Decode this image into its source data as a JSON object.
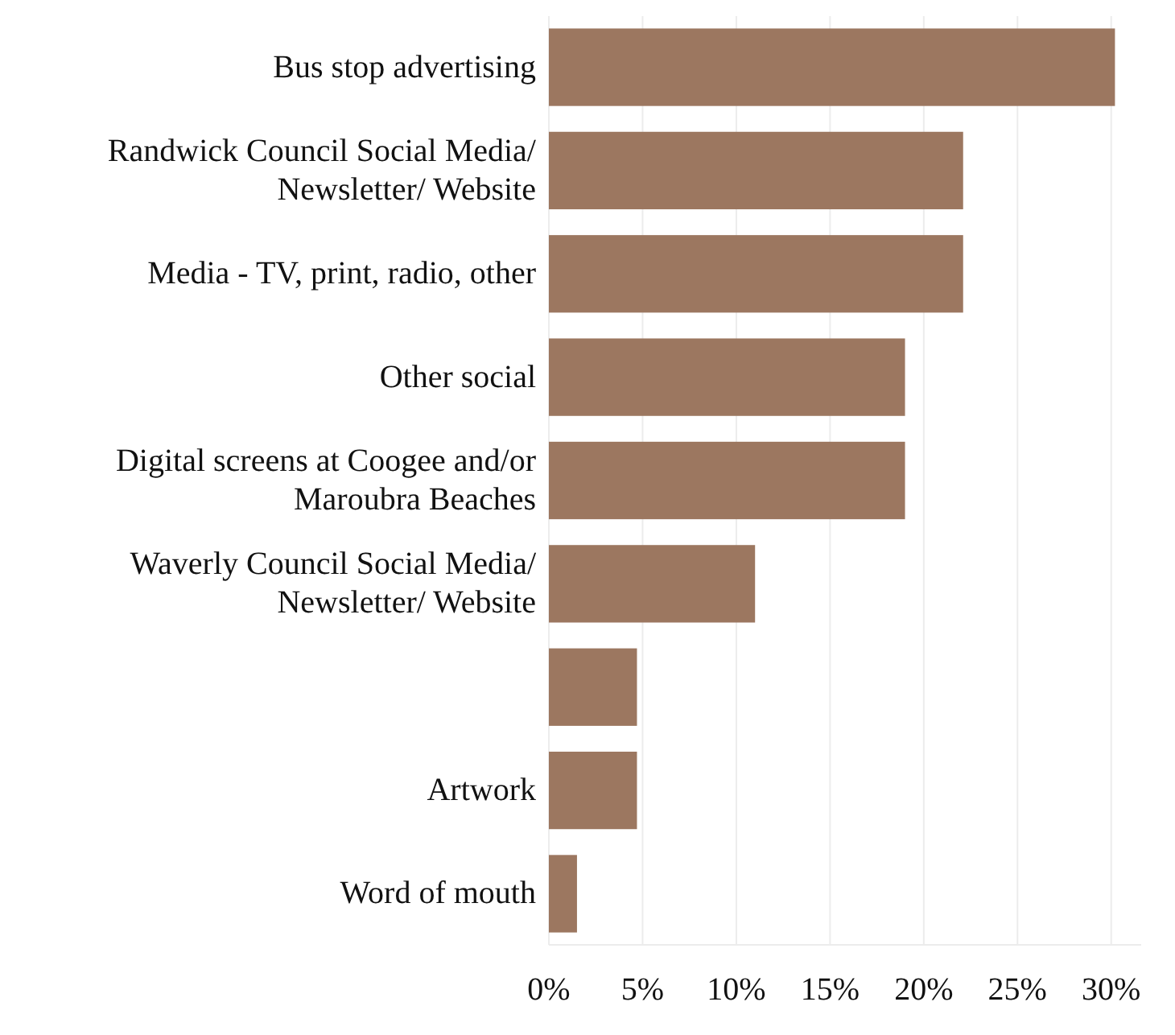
{
  "chart_data": {
    "type": "bar",
    "orientation": "horizontal",
    "categories": [
      "Bus stop advertising",
      "Randwick Council Social Media/ Newsletter/ Website",
      "Media - TV, print, radio, other",
      "Other social",
      "Digital screens at Coogee and/or Maroubra Beaches",
      "Waverly Council Social Media/ Newsletter/ Website",
      null,
      "Artwork",
      "Word of mouth"
    ],
    "values": [
      30.2,
      22.1,
      22.1,
      19.0,
      19.0,
      11.0,
      4.7,
      4.7,
      1.5
    ],
    "color": "#9c7760",
    "xlim": [
      0,
      31.6
    ],
    "xticks": [
      {
        "value": 0,
        "label": "0%"
      },
      {
        "value": 5,
        "label": "5%"
      },
      {
        "value": 10,
        "label": "10%"
      },
      {
        "value": 15,
        "label": "15%"
      },
      {
        "value": 20,
        "label": "20%"
      },
      {
        "value": 25,
        "label": "25%"
      },
      {
        "value": 30,
        "label": "30%"
      }
    ],
    "grid": "x"
  }
}
